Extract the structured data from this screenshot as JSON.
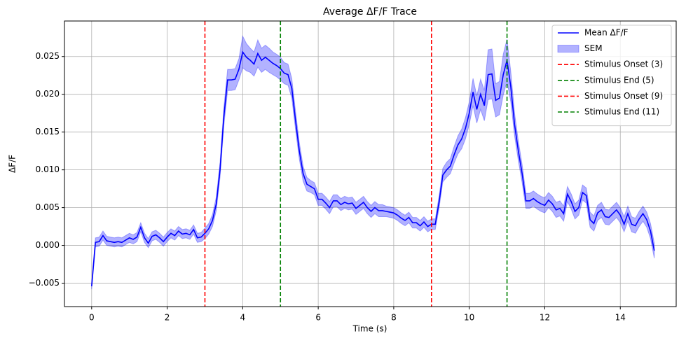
{
  "chart_data": {
    "type": "line",
    "title": "Average ΔF/F Trace",
    "xlabel": "Time (s)",
    "ylabel": "ΔF/F",
    "x": [
      0,
      0.1,
      0.2,
      0.3,
      0.4,
      0.5,
      0.6,
      0.7,
      0.8,
      0.9,
      1,
      1.1,
      1.2,
      1.3,
      1.4,
      1.5,
      1.6,
      1.7,
      1.8,
      1.9,
      2,
      2.1,
      2.2,
      2.3,
      2.4,
      2.5,
      2.6,
      2.7,
      2.8,
      2.9,
      3,
      3.1,
      3.2,
      3.3,
      3.4,
      3.5,
      3.6,
      3.7,
      3.8,
      3.9,
      4,
      4.1,
      4.2,
      4.3,
      4.4,
      4.5,
      4.6,
      4.7,
      4.8,
      4.9,
      5,
      5.1,
      5.2,
      5.3,
      5.4,
      5.5,
      5.6,
      5.7,
      5.8,
      5.9,
      6,
      6.1,
      6.2,
      6.3,
      6.4,
      6.5,
      6.6,
      6.7,
      6.8,
      6.9,
      7,
      7.1,
      7.2,
      7.3,
      7.4,
      7.5,
      7.6,
      7.7,
      7.8,
      7.9,
      8,
      8.1,
      8.2,
      8.3,
      8.4,
      8.5,
      8.6,
      8.7,
      8.8,
      8.9,
      9,
      9.1,
      9.2,
      9.3,
      9.4,
      9.5,
      9.6,
      9.7,
      9.8,
      9.9,
      10,
      10.1,
      10.2,
      10.3,
      10.4,
      10.5,
      10.6,
      10.7,
      10.8,
      10.9,
      11,
      11.1,
      11.2,
      11.3,
      11.4,
      11.5,
      11.6,
      11.7,
      11.8,
      11.9,
      12,
      12.1,
      12.2,
      12.3,
      12.4,
      12.5,
      12.6,
      12.7,
      12.8,
      12.9,
      13,
      13.1,
      13.2,
      13.3,
      13.4,
      13.5,
      13.6,
      13.7,
      13.8,
      13.9,
      14,
      14.1,
      14.2,
      14.3,
      14.4,
      14.5,
      14.6,
      14.7,
      14.8,
      14.9
    ],
    "series": [
      {
        "name": "Mean ΔF/F",
        "color": "#0000ff",
        "values": [
          -0.0054,
          0.0004,
          0.0005,
          0.0013,
          0.0006,
          0.0005,
          0.0004,
          0.0005,
          0.0004,
          0.0007,
          0.001,
          0.0008,
          0.0011,
          0.0024,
          0.001,
          0.0003,
          0.0012,
          0.0014,
          0.001,
          0.0005,
          0.0011,
          0.0016,
          0.0013,
          0.0019,
          0.0015,
          0.0016,
          0.0014,
          0.0021,
          0.001,
          0.0011,
          0.0016,
          0.0022,
          0.0033,
          0.0055,
          0.01,
          0.017,
          0.0219,
          0.0219,
          0.022,
          0.0233,
          0.0256,
          0.0249,
          0.0245,
          0.024,
          0.0254,
          0.0245,
          0.0249,
          0.0245,
          0.0241,
          0.0238,
          0.0234,
          0.0228,
          0.0226,
          0.0208,
          0.0165,
          0.0125,
          0.0095,
          0.0081,
          0.0078,
          0.0075,
          0.0061,
          0.0061,
          0.0056,
          0.005,
          0.0059,
          0.0059,
          0.0054,
          0.0057,
          0.0055,
          0.0056,
          0.0049,
          0.0053,
          0.0057,
          0.005,
          0.0045,
          0.005,
          0.0046,
          0.0046,
          0.0045,
          0.0044,
          0.0043,
          0.004,
          0.0036,
          0.0033,
          0.0037,
          0.003,
          0.003,
          0.0026,
          0.0031,
          0.0025,
          0.0028,
          0.0028,
          0.0057,
          0.0093,
          0.01,
          0.0105,
          0.012,
          0.0133,
          0.0141,
          0.0155,
          0.0175,
          0.0203,
          0.018,
          0.02,
          0.0185,
          0.0226,
          0.0227,
          0.0192,
          0.0195,
          0.0226,
          0.0245,
          0.021,
          0.016,
          0.0125,
          0.0095,
          0.0059,
          0.0059,
          0.0062,
          0.0058,
          0.0055,
          0.0053,
          0.006,
          0.0055,
          0.0047,
          0.0049,
          0.0042,
          0.0068,
          0.0058,
          0.0045,
          0.005,
          0.007,
          0.0066,
          0.0034,
          0.0029,
          0.0043,
          0.0047,
          0.0038,
          0.0037,
          0.0042,
          0.0047,
          0.004,
          0.0028,
          0.0042,
          0.0028,
          0.0026,
          0.0035,
          0.0042,
          0.0034,
          0.0019,
          -0.0007
        ]
      }
    ],
    "sem": {
      "name": "SEM",
      "color": "#0000ff",
      "values": [
        0.0004,
        0.0006,
        0.0006,
        0.0006,
        0.0006,
        0.0006,
        0.0006,
        0.0006,
        0.0006,
        0.0006,
        0.0006,
        0.0006,
        0.0006,
        0.0006,
        0.0006,
        0.0006,
        0.0006,
        0.0006,
        0.0006,
        0.0006,
        0.0006,
        0.0006,
        0.0006,
        0.0006,
        0.0006,
        0.0006,
        0.0006,
        0.0006,
        0.0006,
        0.0006,
        0.0007,
        0.0007,
        0.0008,
        0.0009,
        0.001,
        0.0012,
        0.0014,
        0.0014,
        0.0014,
        0.0014,
        0.0021,
        0.0018,
        0.0016,
        0.0016,
        0.0018,
        0.0016,
        0.0016,
        0.0016,
        0.0015,
        0.0015,
        0.0015,
        0.0014,
        0.0014,
        0.0013,
        0.0012,
        0.0011,
        0.001,
        0.0009,
        0.0008,
        0.0008,
        0.0008,
        0.0008,
        0.0008,
        0.0008,
        0.0008,
        0.0008,
        0.0008,
        0.0008,
        0.0008,
        0.0008,
        0.0008,
        0.0008,
        0.0008,
        0.0008,
        0.0008,
        0.0008,
        0.0008,
        0.0008,
        0.0007,
        0.0007,
        0.0007,
        0.0007,
        0.0007,
        0.0007,
        0.0007,
        0.0007,
        0.0007,
        0.0007,
        0.0007,
        0.0007,
        0.0007,
        0.0007,
        0.0008,
        0.0009,
        0.001,
        0.001,
        0.0011,
        0.0012,
        0.0013,
        0.0014,
        0.0015,
        0.0018,
        0.0018,
        0.002,
        0.002,
        0.0033,
        0.0033,
        0.0022,
        0.0022,
        0.0027,
        0.0028,
        0.002,
        0.0015,
        0.0013,
        0.0012,
        0.001,
        0.001,
        0.001,
        0.001,
        0.001,
        0.001,
        0.001,
        0.001,
        0.001,
        0.001,
        0.001,
        0.001,
        0.001,
        0.001,
        0.001,
        0.001,
        0.001,
        0.001,
        0.001,
        0.001,
        0.001,
        0.001,
        0.001,
        0.001,
        0.001,
        0.001,
        0.001,
        0.001,
        0.001,
        0.001,
        0.001,
        0.001,
        0.001,
        0.001,
        0.001
      ]
    },
    "vlines": [
      {
        "name": "Stimulus Onset (3)",
        "x": 3,
        "color": "#ff0000"
      },
      {
        "name": "Stimulus End (5)",
        "x": 5,
        "color": "#008000"
      },
      {
        "name": "Stimulus Onset (9)",
        "x": 9,
        "color": "#ff0000"
      },
      {
        "name": "Stimulus End (11)",
        "x": 11,
        "color": "#008000"
      }
    ],
    "xlim": [
      -0.72,
      15.48
    ],
    "ylim": [
      -0.0081,
      0.0297
    ],
    "xticks": [
      0,
      2,
      4,
      6,
      8,
      10,
      12,
      14
    ],
    "yticks": [
      {
        "value": -0.005,
        "label": "−0.005"
      },
      {
        "value": 0,
        "label": "0.000"
      },
      {
        "value": 0.005,
        "label": "0.005"
      },
      {
        "value": 0.01,
        "label": "0.010"
      },
      {
        "value": 0.015,
        "label": "0.015"
      },
      {
        "value": 0.02,
        "label": "0.020"
      },
      {
        "value": 0.025,
        "label": "0.025"
      }
    ],
    "grid": true,
    "legend": "upper right"
  }
}
